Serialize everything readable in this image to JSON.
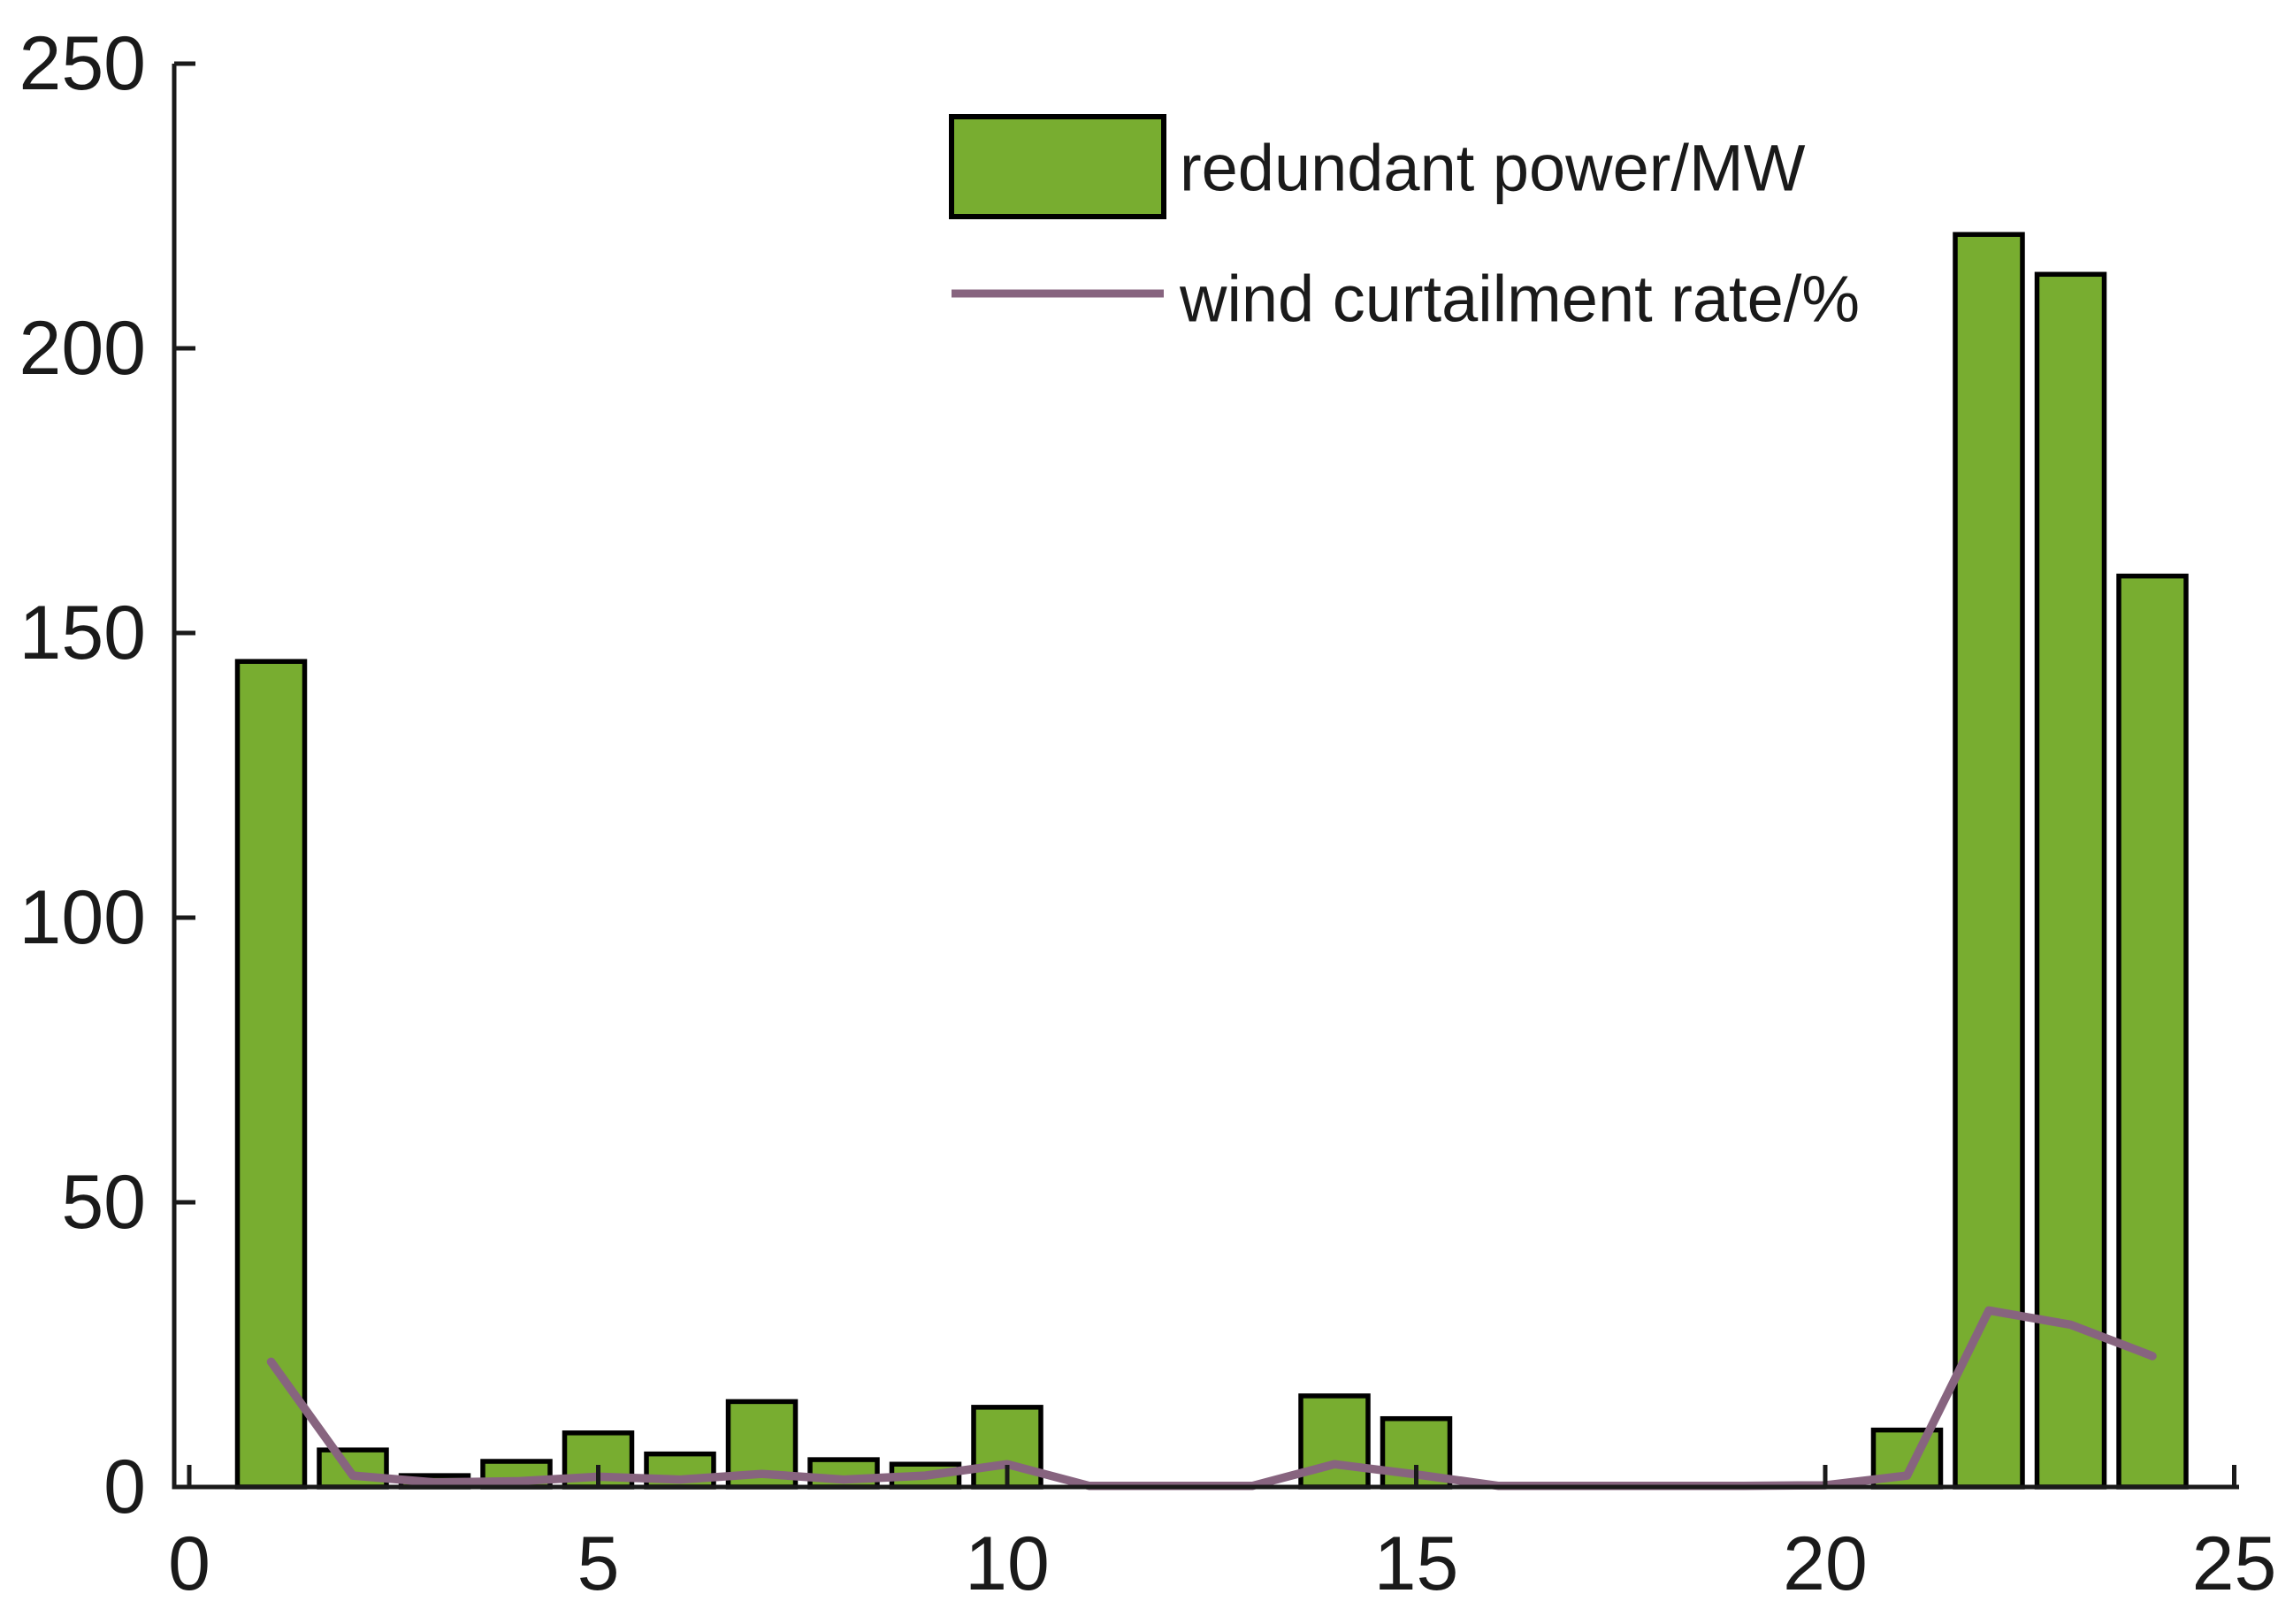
{
  "chart_data": {
    "type": "bar+line",
    "title": "",
    "xlabel": "",
    "ylabel": "",
    "x": [
      1,
      2,
      3,
      4,
      5,
      6,
      7,
      8,
      9,
      10,
      11,
      12,
      13,
      14,
      15,
      16,
      17,
      18,
      19,
      20,
      21,
      22,
      23,
      24
    ],
    "series": [
      {
        "name": "redundant power/MW",
        "type": "bar",
        "color": "#78ad30",
        "edge_color": "#000000",
        "values": [
          145,
          6.5,
          2,
          4.5,
          9.5,
          5.8,
          15,
          4.8,
          4,
          14,
          0,
          0,
          0,
          16,
          12,
          0,
          0,
          0,
          0,
          0,
          10,
          220,
          213,
          160
        ]
      },
      {
        "name": "wind curtailment rate/%",
        "type": "line",
        "color": "#87647f",
        "values": [
          22,
          2,
          0.8,
          1,
          1.8,
          1.3,
          2.3,
          1.3,
          2,
          4,
          0.2,
          0.2,
          0.2,
          4,
          2.2,
          0.2,
          0.2,
          0.2,
          0.2,
          0.3,
          2,
          31,
          28.5,
          23
        ]
      }
    ],
    "xlim": [
      0,
      25
    ],
    "ylim": [
      0,
      250
    ],
    "xticks": [
      0,
      5,
      10,
      15,
      20,
      25
    ],
    "yticks": [
      0,
      50,
      100,
      150,
      200,
      250
    ],
    "grid": false,
    "box": false,
    "tick_direction": "in",
    "legend_position": "inside-upper-center",
    "axis_color": "#1a1a1a",
    "background": "#ffffff"
  }
}
